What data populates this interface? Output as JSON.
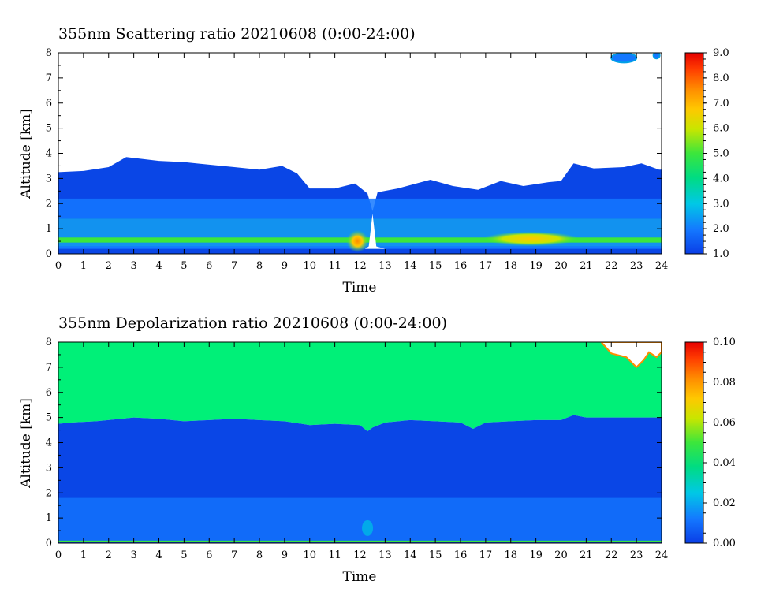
{
  "chart_data": [
    {
      "type": "heatmap",
      "title": "355nm Scattering ratio  20210608 (0:00-24:00)",
      "xlabel": "Time",
      "ylabel": "Altitude [km]",
      "xlim": [
        0,
        24
      ],
      "ylim": [
        0,
        8
      ],
      "x_ticks": [
        "0",
        "1",
        "2",
        "3",
        "4",
        "5",
        "6",
        "7",
        "8",
        "9",
        "10",
        "11",
        "12",
        "13",
        "14",
        "15",
        "16",
        "17",
        "18",
        "19",
        "20",
        "21",
        "22",
        "23",
        "24"
      ],
      "y_ticks": [
        "0",
        "1",
        "2",
        "3",
        "4",
        "5",
        "6",
        "7",
        "8"
      ],
      "colorbar": {
        "range": [
          1.0,
          9.0
        ],
        "tick_labels": [
          "1.0",
          "2.0",
          "3.0",
          "4.0",
          "5.0",
          "6.0",
          "7.0",
          "8.0",
          "9.0"
        ],
        "colors": [
          "#0a3ee6",
          "#1478ff",
          "#00c8e6",
          "#00dc82",
          "#3ce63c",
          "#c8e600",
          "#ffc800",
          "#ff8c00",
          "#ff3c00",
          "#e60000"
        ]
      },
      "cloud_top_km": [
        [
          0,
          3.25
        ],
        [
          1,
          3.3
        ],
        [
          2,
          3.45
        ],
        [
          2.7,
          3.85
        ],
        [
          4,
          3.7
        ],
        [
          5,
          3.65
        ],
        [
          6,
          3.55
        ],
        [
          7,
          3.45
        ],
        [
          8,
          3.35
        ],
        [
          8.9,
          3.5
        ],
        [
          9.5,
          3.2
        ],
        [
          10,
          2.6
        ],
        [
          11,
          2.6
        ],
        [
          11.8,
          2.8
        ],
        [
          12.3,
          2.4
        ],
        [
          12.5,
          1.7
        ],
        [
          12.7,
          2.45
        ],
        [
          13.5,
          2.6
        ],
        [
          14.8,
          2.95
        ],
        [
          15.7,
          2.7
        ],
        [
          16.7,
          2.55
        ],
        [
          17.6,
          2.9
        ],
        [
          18.5,
          2.7
        ],
        [
          19.5,
          2.85
        ],
        [
          20,
          2.9
        ],
        [
          20.5,
          3.6
        ],
        [
          21.3,
          3.4
        ],
        [
          22.5,
          3.45
        ],
        [
          23.2,
          3.6
        ],
        [
          23.9,
          3.35
        ],
        [
          24,
          3.35
        ]
      ],
      "bands_km": [
        {
          "layer": "low",
          "bottom": 0.3,
          "top": 1.4,
          "value": 3.5
        },
        {
          "layer": "mid",
          "bottom": 1.4,
          "top": 2.2,
          "value": 2.5
        },
        {
          "layer": "surface",
          "bottom": 0.45,
          "top": 0.65,
          "value": 5.0
        }
      ],
      "features": [
        {
          "name": "Hotspot near 12h",
          "x": 11.9,
          "y": 0.5,
          "value": 7.5
        },
        {
          "name": "Enhanced band 18-20h",
          "x": 18.8,
          "y": 0.6,
          "value": 6.0
        },
        {
          "name": "High cloud 22-23h",
          "x": 22.5,
          "y": 7.8,
          "value": 2.0
        },
        {
          "name": "High cloud 23.8h",
          "x": 23.8,
          "y": 7.9,
          "value": 2.0
        }
      ]
    },
    {
      "type": "heatmap",
      "title": "355nm Depolarization ratio  20210608 (0:00-24:00)",
      "xlabel": "Time",
      "ylabel": "Altitude [km]",
      "xlim": [
        0,
        24
      ],
      "ylim": [
        0,
        8
      ],
      "x_ticks": [
        "0",
        "1",
        "2",
        "3",
        "4",
        "5",
        "6",
        "7",
        "8",
        "9",
        "10",
        "11",
        "12",
        "13",
        "14",
        "15",
        "16",
        "17",
        "18",
        "19",
        "20",
        "21",
        "22",
        "23",
        "24"
      ],
      "y_ticks": [
        "0",
        "1",
        "2",
        "3",
        "4",
        "5",
        "6",
        "7",
        "8"
      ],
      "colorbar": {
        "range": [
          0.0,
          0.1
        ],
        "tick_labels": [
          "0.00",
          "0.02",
          "0.04",
          "0.06",
          "0.08",
          "0.10"
        ],
        "colors": [
          "#0a3ee6",
          "#1478ff",
          "#00c8e6",
          "#00dc82",
          "#3ce63c",
          "#c8e600",
          "#ffc800",
          "#ff8c00",
          "#ff3c00",
          "#e60000"
        ]
      },
      "boundary_km": [
        [
          0,
          4.75
        ],
        [
          0.5,
          4.8
        ],
        [
          1.5,
          4.85
        ],
        [
          2.5,
          4.95
        ],
        [
          3,
          5.0
        ],
        [
          4,
          4.95
        ],
        [
          5,
          4.85
        ],
        [
          6,
          4.9
        ],
        [
          7,
          4.95
        ],
        [
          8,
          4.9
        ],
        [
          9,
          4.85
        ],
        [
          10,
          4.7
        ],
        [
          11,
          4.75
        ],
        [
          12,
          4.7
        ],
        [
          12.3,
          4.45
        ],
        [
          12.5,
          4.6
        ],
        [
          13,
          4.8
        ],
        [
          14,
          4.9
        ],
        [
          15,
          4.85
        ],
        [
          16,
          4.8
        ],
        [
          16.5,
          4.55
        ],
        [
          17,
          4.8
        ],
        [
          18,
          4.85
        ],
        [
          19,
          4.9
        ],
        [
          20,
          4.9
        ],
        [
          20.5,
          5.1
        ],
        [
          21,
          5.0
        ],
        [
          22,
          5.0
        ],
        [
          23,
          5.0
        ],
        [
          24,
          5.0
        ]
      ],
      "upper_value": 0.04,
      "lower_value": 0.0,
      "near_surface_value": 0.015,
      "features": [
        {
          "name": "No data region 21.5-24h",
          "x": 22.8,
          "y": 7.6,
          "value": null
        }
      ]
    }
  ]
}
